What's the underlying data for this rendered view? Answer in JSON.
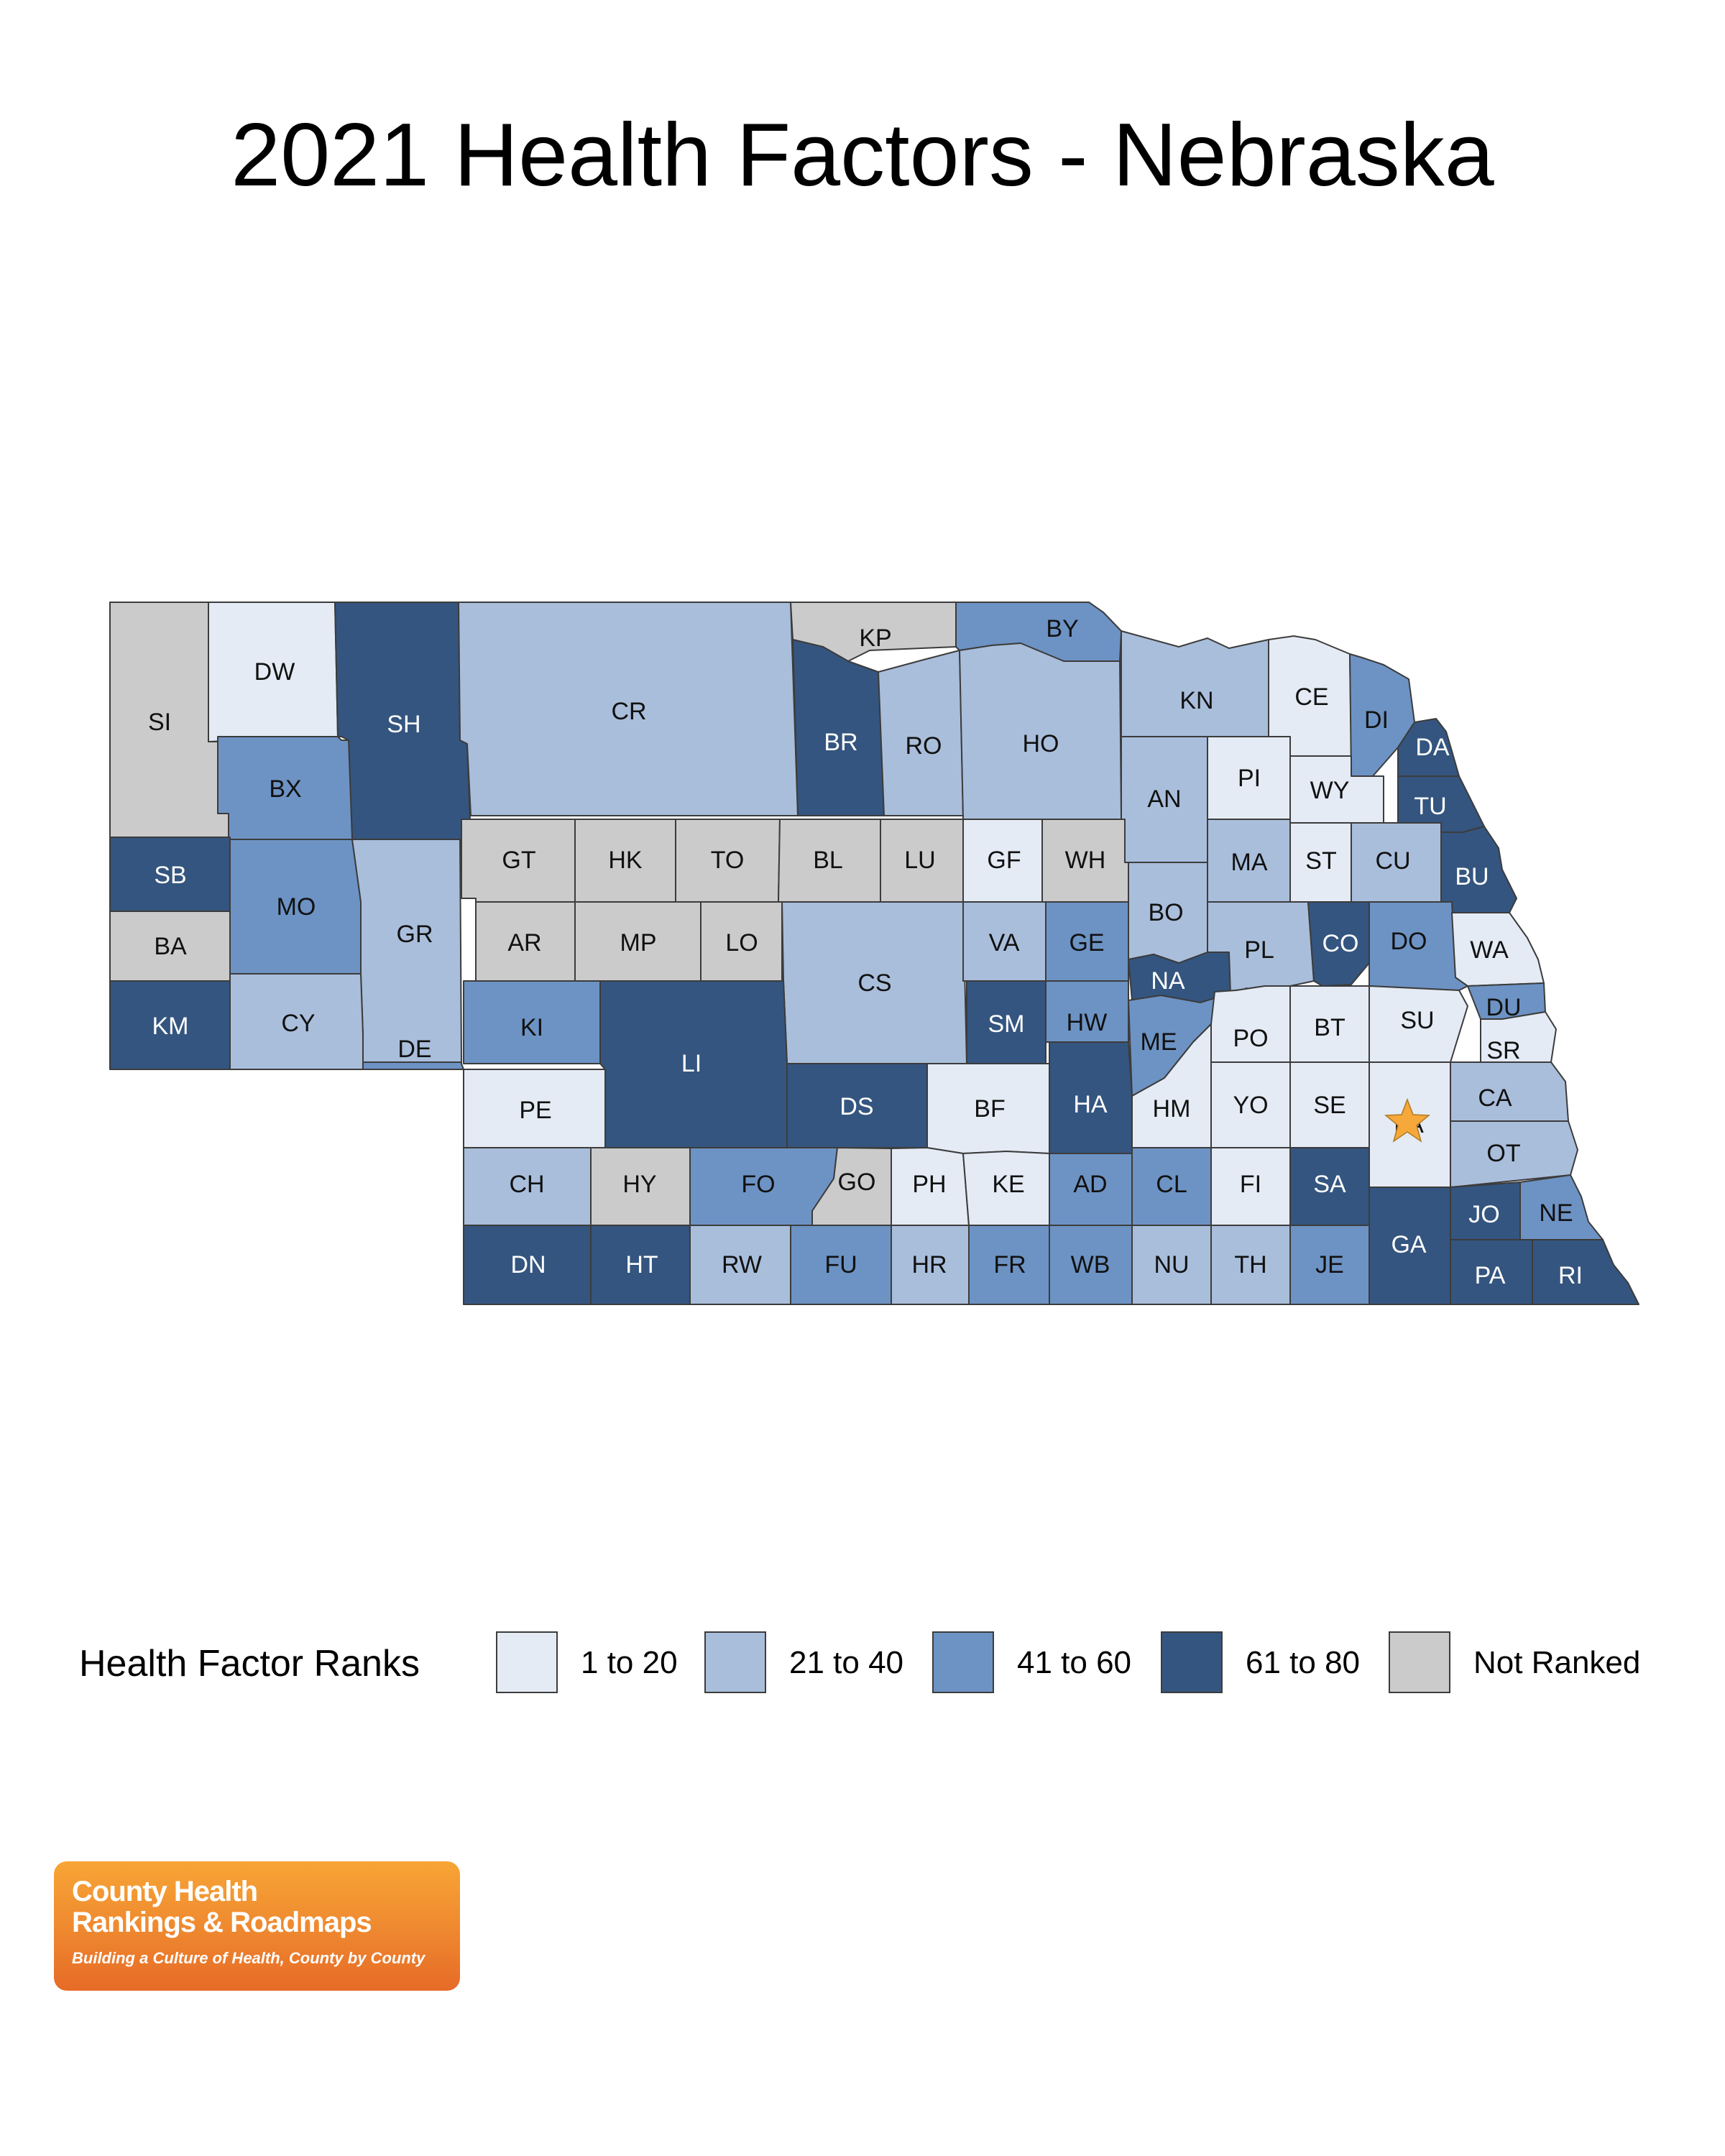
{
  "title": "2021 Health Factors - Nebraska",
  "colors": {
    "1 to 20": "#e4ebf5",
    "21 to 40": "#a9bedb",
    "41 to 60": "#6d93c4",
    "61 to 80": "#34557f",
    "Not Ranked": "#cbcbcb"
  },
  "legend": {
    "title": "Health Factor Ranks",
    "items": [
      {
        "label": "1 to 20",
        "color": "#e4ebf5"
      },
      {
        "label": "21 to 40",
        "color": "#a9bedb"
      },
      {
        "label": "41 to 60",
        "color": "#6d93c4"
      },
      {
        "label": "61 to 80",
        "color": "#34557f"
      },
      {
        "label": "Not Ranked",
        "color": "#cbcbcb"
      }
    ]
  },
  "counties": [
    {
      "code": "SI",
      "rank": "Not Ranked"
    },
    {
      "code": "DW",
      "rank": "1 to 20"
    },
    {
      "code": "SH",
      "rank": "61 to 80"
    },
    {
      "code": "CR",
      "rank": "21 to 40"
    },
    {
      "code": "KP",
      "rank": "Not Ranked"
    },
    {
      "code": "BR",
      "rank": "61 to 80"
    },
    {
      "code": "RO",
      "rank": "21 to 40"
    },
    {
      "code": "BY",
      "rank": "41 to 60"
    },
    {
      "code": "HO",
      "rank": "21 to 40"
    },
    {
      "code": "KN",
      "rank": "21 to 40"
    },
    {
      "code": "CE",
      "rank": "1 to 20"
    },
    {
      "code": "DI",
      "rank": "41 to 60"
    },
    {
      "code": "DA",
      "rank": "61 to 80"
    },
    {
      "code": "BX",
      "rank": "41 to 60"
    },
    {
      "code": "AN",
      "rank": "21 to 40"
    },
    {
      "code": "PI",
      "rank": "1 to 20"
    },
    {
      "code": "WY",
      "rank": "1 to 20"
    },
    {
      "code": "TU",
      "rank": "61 to 80"
    },
    {
      "code": "SB",
      "rank": "61 to 80"
    },
    {
      "code": "MO",
      "rank": "41 to 60"
    },
    {
      "code": "GR",
      "rank": "21 to 40"
    },
    {
      "code": "GT",
      "rank": "Not Ranked"
    },
    {
      "code": "HK",
      "rank": "Not Ranked"
    },
    {
      "code": "TO",
      "rank": "Not Ranked"
    },
    {
      "code": "BL",
      "rank": "Not Ranked"
    },
    {
      "code": "LU",
      "rank": "Not Ranked"
    },
    {
      "code": "GF",
      "rank": "1 to 20"
    },
    {
      "code": "WH",
      "rank": "Not Ranked"
    },
    {
      "code": "MA",
      "rank": "21 to 40"
    },
    {
      "code": "ST",
      "rank": "1 to 20"
    },
    {
      "code": "CU",
      "rank": "21 to 40"
    },
    {
      "code": "BU",
      "rank": "61 to 80"
    },
    {
      "code": "BA",
      "rank": "Not Ranked"
    },
    {
      "code": "AR",
      "rank": "Not Ranked"
    },
    {
      "code": "MP",
      "rank": "Not Ranked"
    },
    {
      "code": "LO",
      "rank": "Not Ranked"
    },
    {
      "code": "CS",
      "rank": "21 to 40"
    },
    {
      "code": "VA",
      "rank": "21 to 40"
    },
    {
      "code": "GE",
      "rank": "41 to 60"
    },
    {
      "code": "BO",
      "rank": "21 to 40"
    },
    {
      "code": "PL",
      "rank": "21 to 40"
    },
    {
      "code": "CO",
      "rank": "61 to 80"
    },
    {
      "code": "DO",
      "rank": "41 to 60"
    },
    {
      "code": "WA",
      "rank": "1 to 20"
    },
    {
      "code": "KM",
      "rank": "61 to 80"
    },
    {
      "code": "CY",
      "rank": "21 to 40"
    },
    {
      "code": "KI",
      "rank": "41 to 60"
    },
    {
      "code": "LI",
      "rank": "61 to 80"
    },
    {
      "code": "SM",
      "rank": "61 to 80"
    },
    {
      "code": "HW",
      "rank": "41 to 60"
    },
    {
      "code": "NA",
      "rank": "61 to 80"
    },
    {
      "code": "ME",
      "rank": "41 to 60"
    },
    {
      "code": "PO",
      "rank": "1 to 20"
    },
    {
      "code": "BT",
      "rank": "1 to 20"
    },
    {
      "code": "SU",
      "rank": "1 to 20"
    },
    {
      "code": "DU",
      "rank": "41 to 60"
    },
    {
      "code": "SR",
      "rank": "1 to 20"
    },
    {
      "code": "DE",
      "rank": "41 to 60"
    },
    {
      "code": "PE",
      "rank": "1 to 20"
    },
    {
      "code": "DS",
      "rank": "61 to 80"
    },
    {
      "code": "BF",
      "rank": "1 to 20"
    },
    {
      "code": "HA",
      "rank": "61 to 80"
    },
    {
      "code": "HM",
      "rank": "1 to 20"
    },
    {
      "code": "YO",
      "rank": "1 to 20"
    },
    {
      "code": "SE",
      "rank": "1 to 20"
    },
    {
      "code": "LA",
      "rank": "1 to 20"
    },
    {
      "code": "CA",
      "rank": "21 to 40"
    },
    {
      "code": "OT",
      "rank": "21 to 40"
    },
    {
      "code": "CH",
      "rank": "21 to 40"
    },
    {
      "code": "HY",
      "rank": "Not Ranked"
    },
    {
      "code": "FO",
      "rank": "41 to 60"
    },
    {
      "code": "GO",
      "rank": "Not Ranked"
    },
    {
      "code": "PH",
      "rank": "1 to 20"
    },
    {
      "code": "KE",
      "rank": "1 to 20"
    },
    {
      "code": "AD",
      "rank": "41 to 60"
    },
    {
      "code": "CL",
      "rank": "41 to 60"
    },
    {
      "code": "FI",
      "rank": "1 to 20"
    },
    {
      "code": "SA",
      "rank": "61 to 80"
    },
    {
      "code": "GA",
      "rank": "61 to 80"
    },
    {
      "code": "JO",
      "rank": "61 to 80"
    },
    {
      "code": "NE",
      "rank": "41 to 60"
    },
    {
      "code": "DN",
      "rank": "61 to 80"
    },
    {
      "code": "HT",
      "rank": "61 to 80"
    },
    {
      "code": "RW",
      "rank": "21 to 40"
    },
    {
      "code": "FU",
      "rank": "41 to 60"
    },
    {
      "code": "HR",
      "rank": "21 to 40"
    },
    {
      "code": "FR",
      "rank": "41 to 60"
    },
    {
      "code": "WB",
      "rank": "41 to 60"
    },
    {
      "code": "NU",
      "rank": "21 to 40"
    },
    {
      "code": "TH",
      "rank": "21 to 40"
    },
    {
      "code": "JE",
      "rank": "41 to 60"
    },
    {
      "code": "PA",
      "rank": "61 to 80"
    },
    {
      "code": "RI",
      "rank": "61 to 80"
    }
  ],
  "capital_marker": {
    "county": "LA",
    "icon": "star-icon",
    "color": "#f6a83b"
  },
  "logo": {
    "line1": "County Health",
    "line2": "Rankings & Roadmaps",
    "tagline": "Building a Culture of Health, County by County"
  }
}
